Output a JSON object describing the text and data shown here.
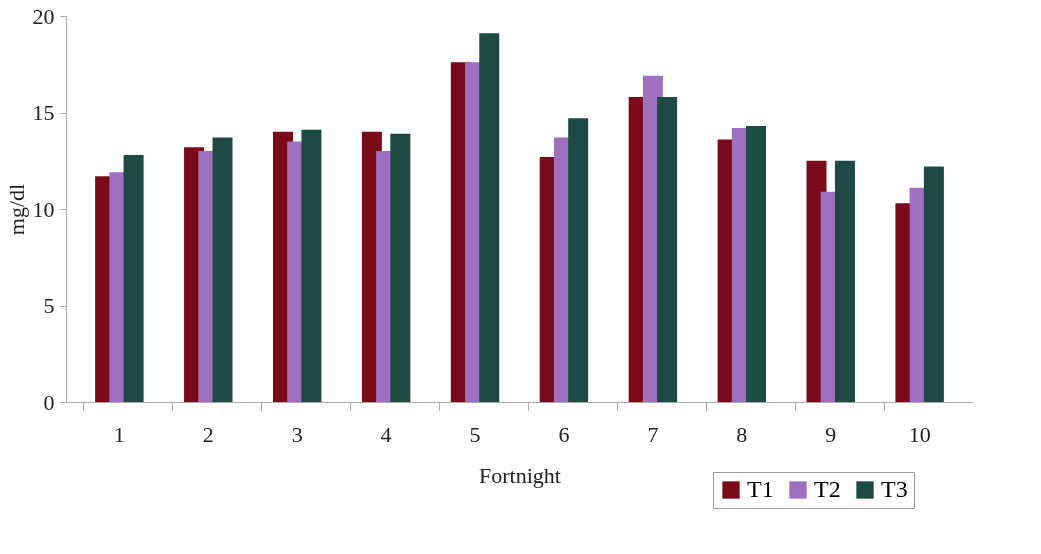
{
  "chart_data": {
    "type": "bar",
    "xlabel": "Fortnight",
    "ylabel": "mg/dl",
    "categories": [
      "1",
      "2",
      "3",
      "4",
      "5",
      "6",
      "7",
      "8",
      "9",
      "10"
    ],
    "series": [
      {
        "name": "T1",
        "color": "#7b0a1a",
        "values": [
          11.7,
          13.2,
          14.0,
          14.0,
          17.6,
          12.7,
          15.8,
          13.6,
          12.5,
          10.3
        ]
      },
      {
        "name": "T2",
        "color": "#a070c0",
        "values": [
          11.9,
          13.0,
          13.5,
          13.0,
          17.6,
          13.7,
          16.9,
          14.2,
          10.9,
          11.1
        ]
      },
      {
        "name": "T3",
        "color": "#1e4a44",
        "values": [
          12.8,
          13.7,
          14.1,
          13.9,
          19.1,
          14.7,
          15.8,
          14.3,
          12.5,
          12.2
        ]
      }
    ],
    "ylim": [
      0,
      20
    ],
    "yticks": [
      0,
      5,
      10,
      15,
      20
    ],
    "grid": false,
    "legend": "bottom right"
  }
}
